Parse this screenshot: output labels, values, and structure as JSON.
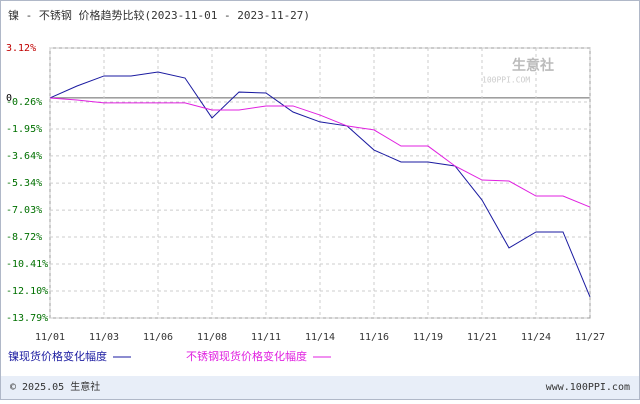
{
  "chart_data": {
    "type": "line",
    "title": "镍 - 不锈钢 价格趋势比较(2023-11-01 - 2023-11-27)",
    "categories": [
      "11/01",
      null,
      "11/03",
      null,
      "11/06",
      null,
      "11/08",
      null,
      "11/11",
      null,
      "11/14",
      null,
      "11/16",
      null,
      "11/19",
      null,
      "11/21",
      null,
      "11/24",
      null,
      "11/27"
    ],
    "series": [
      {
        "name": "镍现货价格变化幅度",
        "color": "#1a1aa0",
        "values": [
          -0.01,
          0.74,
          1.37,
          1.37,
          1.62,
          1.24,
          -1.26,
          0.36,
          0.3,
          -0.89,
          -1.51,
          -1.76,
          -3.27,
          -4.02,
          -4.02,
          -4.27,
          -6.4,
          -9.4,
          -8.4,
          -8.4,
          -12.47
        ]
      },
      {
        "name": "不锈钢现货价格变化幅度",
        "color": "#e020e0",
        "values": [
          -0.01,
          -0.14,
          -0.32,
          -0.32,
          -0.32,
          -0.32,
          -0.76,
          -0.76,
          -0.51,
          -0.51,
          -1.08,
          -1.76,
          -2.01,
          -3.02,
          -3.02,
          -4.27,
          -5.15,
          -5.21,
          -6.15,
          -6.15,
          -6.84
        ]
      }
    ],
    "ylim": [
      -13.79,
      3.12
    ],
    "yticks": [
      {
        "value": 3.12,
        "label": "3.12%"
      },
      0,
      {
        "value": -0.26,
        "label": "-0.26%"
      },
      {
        "value": -1.95,
        "label": "-1.95%"
      },
      {
        "value": -3.64,
        "label": "-3.64%"
      },
      {
        "value": -5.34,
        "label": "-5.34%"
      },
      {
        "value": -7.03,
        "label": "-7.03%"
      },
      {
        "value": -8.72,
        "label": "-8.72%"
      },
      {
        "value": -10.41,
        "label": "-10.41%"
      },
      {
        "value": -12.1,
        "label": "-12.10%"
      },
      {
        "value": -13.79,
        "label": "-13.79%"
      }
    ],
    "grid": true,
    "footer_left": "© 2025.05 生意社",
    "footer_right": "www.100PPI.com",
    "watermark": "生意社",
    "watermark_sub": "100PPI.COM"
  }
}
